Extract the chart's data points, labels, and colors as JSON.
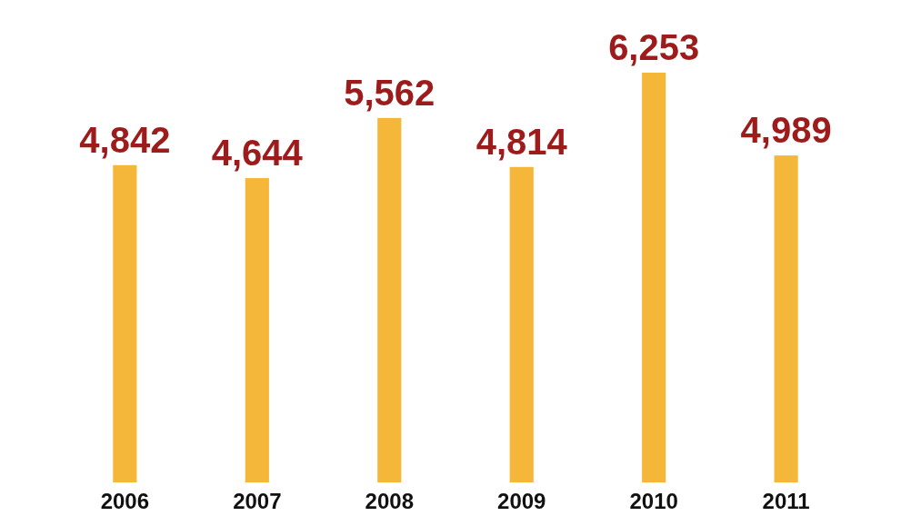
{
  "chart_data": {
    "type": "bar",
    "categories": [
      "2006",
      "2007",
      "2008",
      "2009",
      "2010",
      "2011"
    ],
    "values": [
      4842,
      4644,
      5562,
      4814,
      6253,
      4989
    ],
    "value_labels": [
      "4,842",
      "4,644",
      "5,562",
      "4,814",
      "6,253",
      "4,989"
    ],
    "color": "#f4b73a"
  }
}
